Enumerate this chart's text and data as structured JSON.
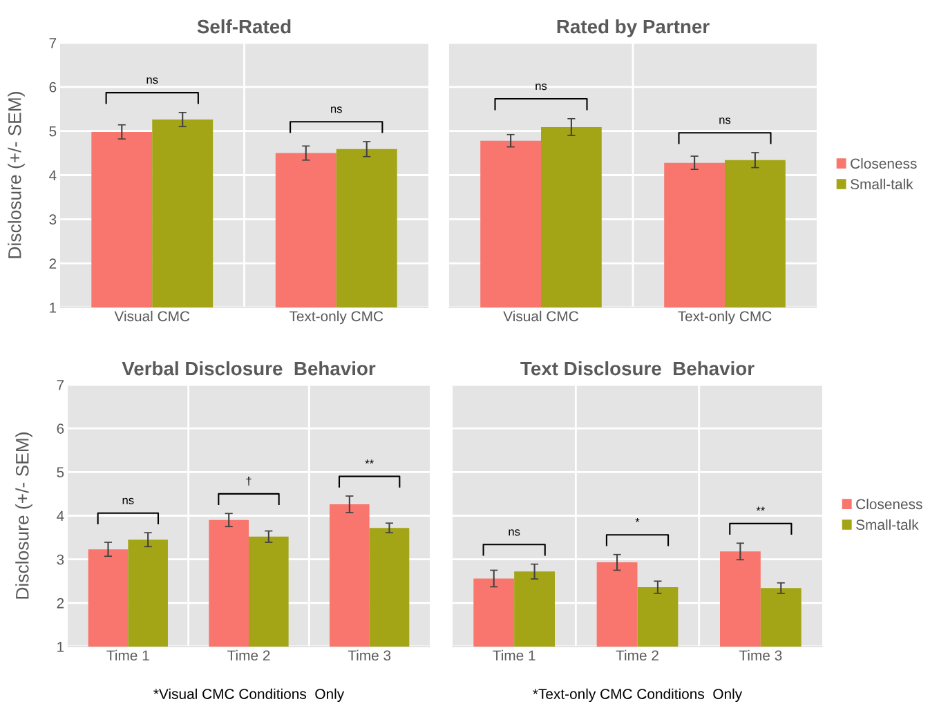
{
  "chart_data": [
    {
      "type": "bar",
      "title": "Self-Rated",
      "ylabel": "Disclosure (+/- SEM)",
      "categories": [
        "Visual CMC",
        "Text-only CMC"
      ],
      "ylim": [
        1,
        7
      ],
      "yticks": [
        1,
        2,
        3,
        4,
        5,
        6,
        7
      ],
      "grid": true,
      "legend": false,
      "series": [
        {
          "color": "#f8766d",
          "values": [
            4.98,
            4.5
          ],
          "errors": [
            0.16,
            0.16
          ]
        },
        {
          "color": "#a3a516",
          "values": [
            5.26,
            4.59
          ],
          "errors": [
            0.16,
            0.17
          ]
        }
      ],
      "annotations": [
        "ns",
        "ns"
      ]
    },
    {
      "type": "bar",
      "title": "Rated by Partner",
      "categories": [
        "Visual CMC",
        "Text-only CMC"
      ],
      "ylim": [
        1,
        7
      ],
      "yticks": [
        1,
        2,
        3,
        4,
        5,
        6,
        7
      ],
      "tick_labels": "x",
      "grid": true,
      "legend": "right",
      "series": [
        {
          "name": "Closeness",
          "color": "#f8766d",
          "values": [
            4.78,
            4.28
          ],
          "errors": [
            0.14,
            0.15
          ]
        },
        {
          "name": "Small-talk",
          "color": "#a3a516",
          "values": [
            5.09,
            4.34
          ],
          "errors": [
            0.19,
            0.17
          ]
        }
      ],
      "annotations": [
        "ns",
        "ns"
      ]
    },
    {
      "type": "bar",
      "title": "Verbal Disclosure  Behavior",
      "ylabel": "Disclosure (+/- SEM)",
      "categories": [
        "Time 1",
        "Time 2",
        "Time 3"
      ],
      "ylim": [
        1,
        7
      ],
      "yticks": [
        1,
        2,
        3,
        4,
        5,
        6,
        7
      ],
      "grid": true,
      "legend": false,
      "series": [
        {
          "color": "#f8766d",
          "values": [
            3.23,
            3.9,
            4.26
          ],
          "errors": [
            0.16,
            0.15,
            0.19
          ]
        },
        {
          "color": "#a3a516",
          "values": [
            3.45,
            3.52,
            3.72
          ],
          "errors": [
            0.16,
            0.13,
            0.11
          ]
        }
      ],
      "annotations": [
        "ns",
        "†",
        "**",
        "*Visual CMC Conditions  Only"
      ]
    },
    {
      "type": "bar",
      "title": "Text Disclosure  Behavior",
      "categories": [
        "Time 1",
        "Time 2",
        "Time 3"
      ],
      "ylim": [
        1,
        7
      ],
      "yticks": [
        1,
        2,
        3,
        4,
        5,
        6,
        7
      ],
      "tick_labels": "x",
      "grid": true,
      "legend": "right",
      "series": [
        {
          "name": "Closeness",
          "color": "#f8766d",
          "values": [
            2.56,
            2.93,
            3.18
          ],
          "errors": [
            0.19,
            0.18,
            0.19
          ]
        },
        {
          "name": "Small-talk",
          "color": "#a3a516",
          "values": [
            2.72,
            2.36,
            2.34
          ],
          "errors": [
            0.17,
            0.14,
            0.12
          ]
        }
      ],
      "annotations": [
        "ns",
        "*",
        "**",
        "*Text-only CMC Conditions  Only"
      ]
    }
  ]
}
